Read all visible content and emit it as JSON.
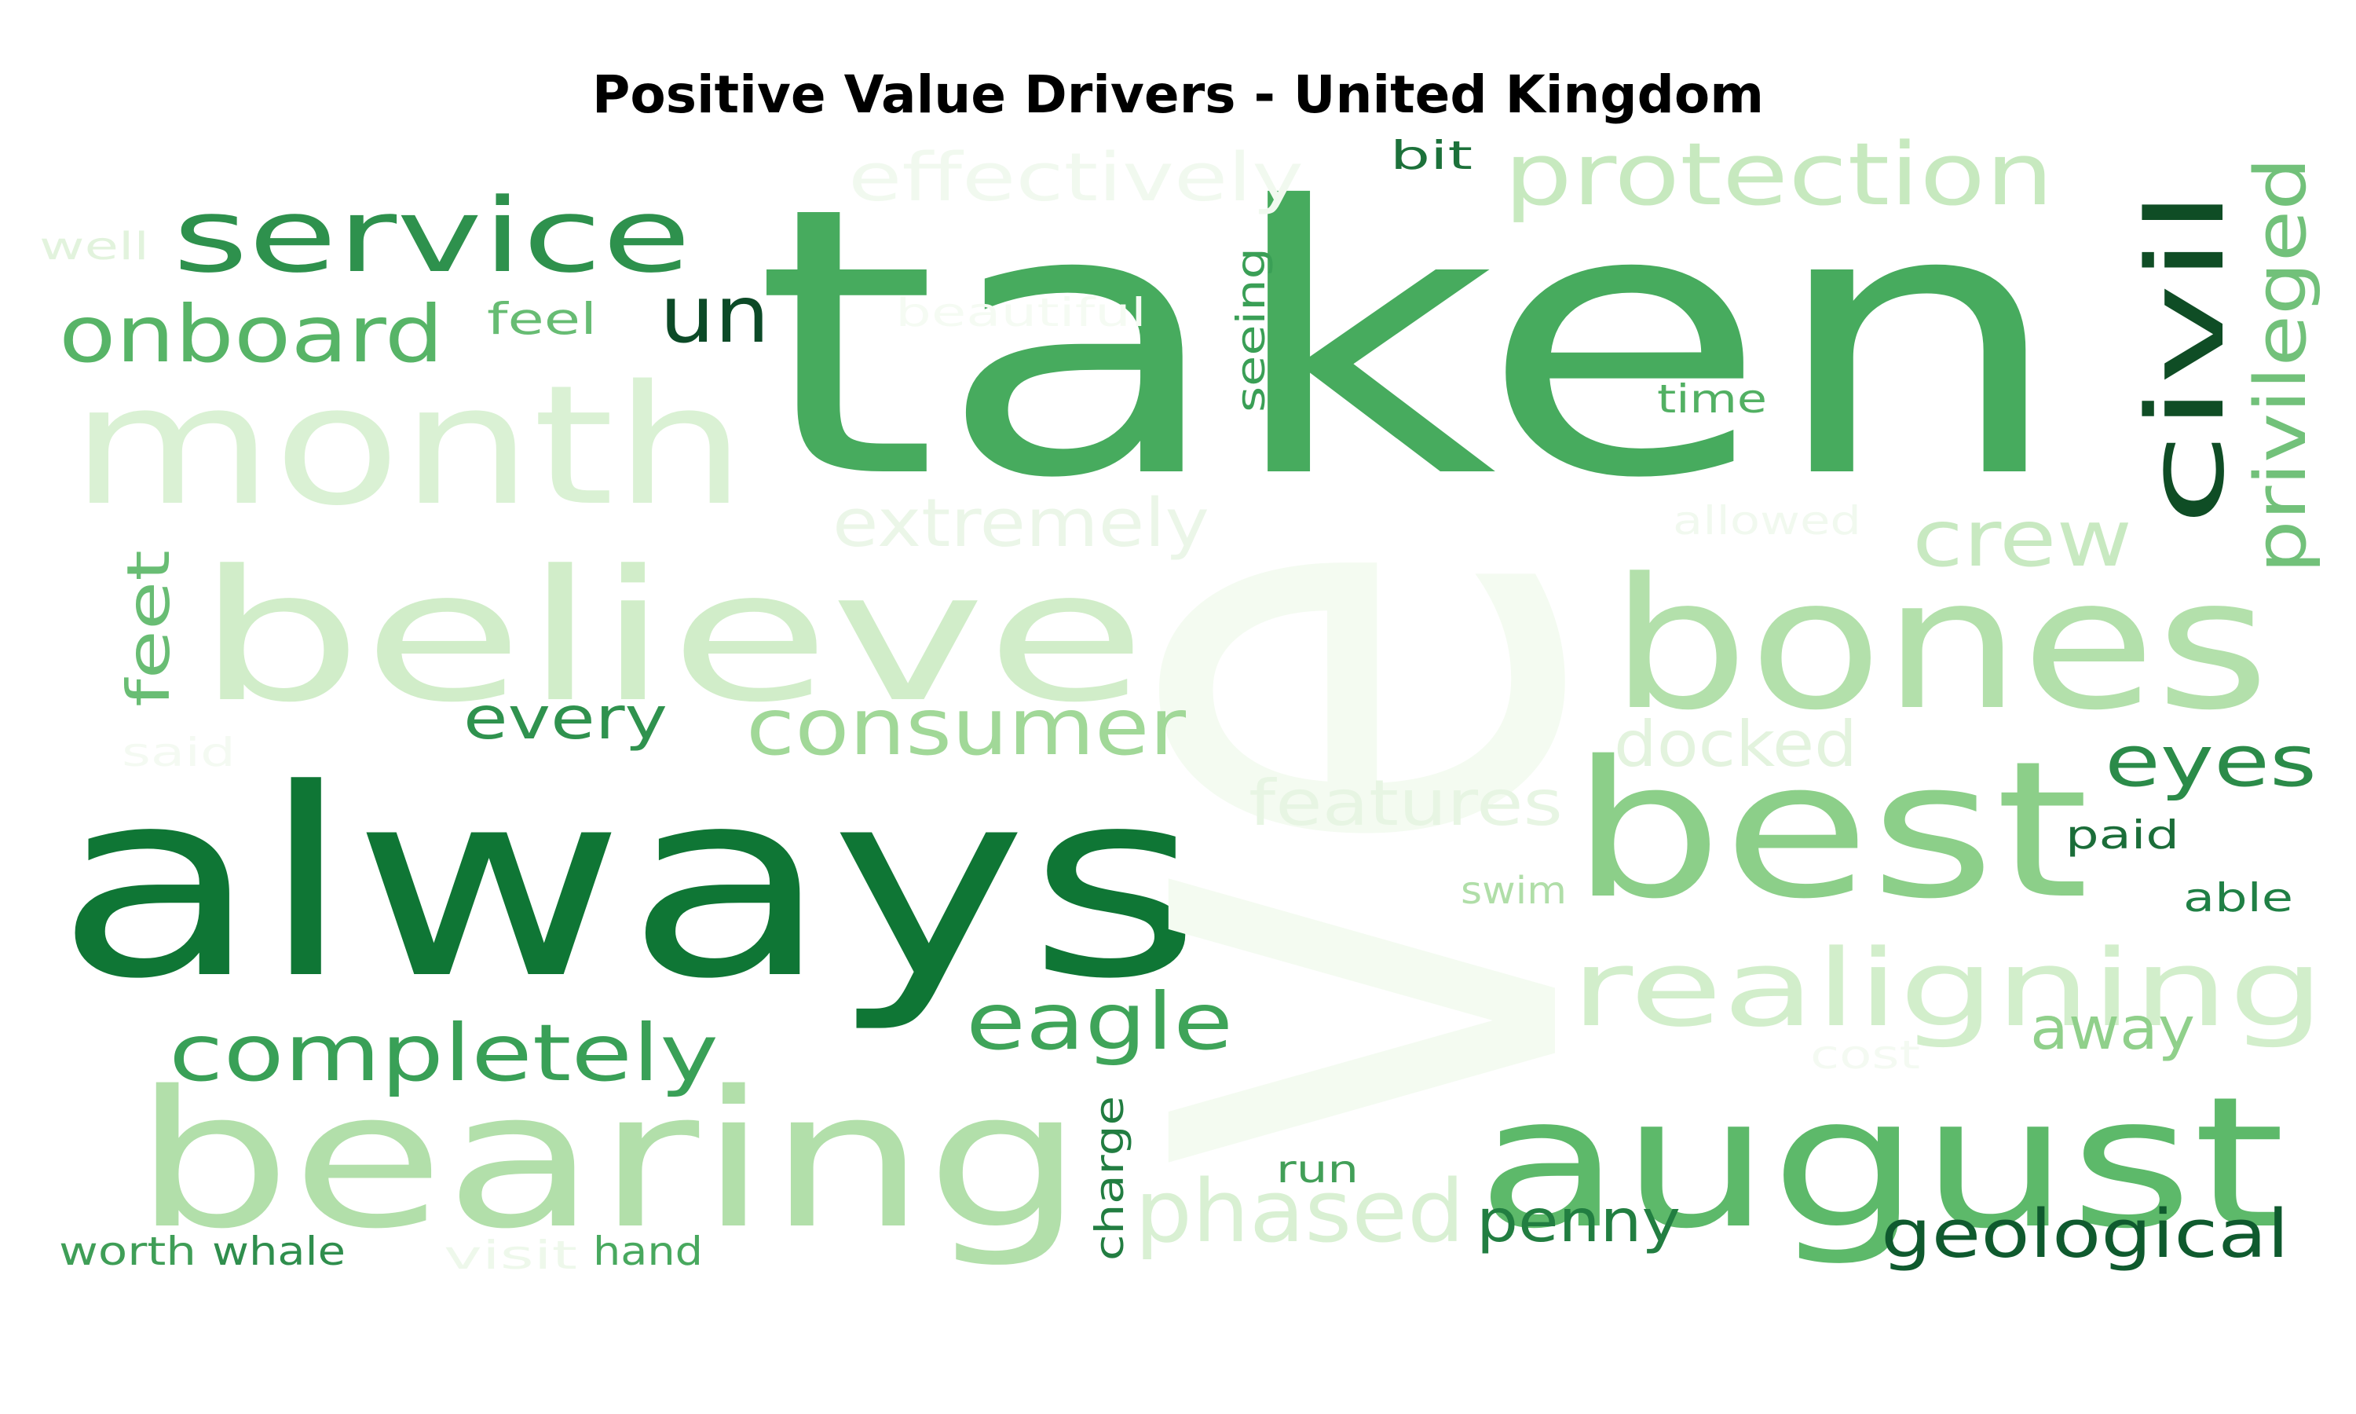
{
  "chart_data": {
    "type": "wordcloud",
    "title": "Positive Value Drivers - United Kingdom",
    "colormap": "Greens",
    "words": [
      {
        "text": "taken",
        "weight": 1.0,
        "color": "#47ab5e",
        "orient": "h"
      },
      {
        "text": "always",
        "weight": 0.93,
        "color": "#0f7635",
        "orient": "h"
      },
      {
        "text": "ve",
        "weight": 0.95,
        "color": "#f4fbf1",
        "orient": "v"
      },
      {
        "text": "bearing",
        "weight": 0.55,
        "color": "#b2dfaa",
        "orient": "h"
      },
      {
        "text": "believe",
        "weight": 0.55,
        "color": "#d1edc9",
        "orient": "h"
      },
      {
        "text": "month",
        "weight": 0.5,
        "color": "#daf1d4",
        "orient": "h"
      },
      {
        "text": "bones",
        "weight": 0.55,
        "color": "#b3e0ab",
        "orient": "h"
      },
      {
        "text": "best",
        "weight": 0.55,
        "color": "#8ccf89",
        "orient": "h"
      },
      {
        "text": "august",
        "weight": 0.55,
        "color": "#5db96a",
        "orient": "h"
      },
      {
        "text": "realigning",
        "weight": 0.32,
        "color": "#d2eecb",
        "orient": "h"
      },
      {
        "text": "service",
        "weight": 0.26,
        "color": "#2e914d",
        "orient": "h"
      },
      {
        "text": "protection",
        "weight": 0.24,
        "color": "#c7e9bf",
        "orient": "h"
      },
      {
        "text": "civil",
        "weight": 0.26,
        "color": "#0f4d25",
        "orient": "v"
      },
      {
        "text": "completely",
        "weight": 0.21,
        "color": "#39a057",
        "orient": "h"
      },
      {
        "text": "onboard",
        "weight": 0.2,
        "color": "#57b467",
        "orient": "h"
      },
      {
        "text": "consumer",
        "weight": 0.2,
        "color": "#a1d898",
        "orient": "h"
      },
      {
        "text": "eagle",
        "weight": 0.2,
        "color": "#3fa459",
        "orient": "h"
      },
      {
        "text": "crew",
        "weight": 0.2,
        "color": "#c8e9c1",
        "orient": "h"
      },
      {
        "text": "phased",
        "weight": 0.2,
        "color": "#d9f0d3",
        "orient": "h"
      },
      {
        "text": "privileged",
        "weight": 0.17,
        "color": "#72c17a",
        "orient": "v"
      },
      {
        "text": "eyes",
        "weight": 0.17,
        "color": "#2b8b49",
        "orient": "h"
      },
      {
        "text": "un",
        "weight": 0.17,
        "color": "#0c4a27",
        "orient": "h"
      },
      {
        "text": "effectively",
        "weight": 0.17,
        "color": "#f1f9ef",
        "orient": "h"
      },
      {
        "text": "extremely",
        "weight": 0.17,
        "color": "#ebf6e8",
        "orient": "h"
      },
      {
        "text": "features",
        "weight": 0.16,
        "color": "#e7f5e3",
        "orient": "h"
      },
      {
        "text": "docked",
        "weight": 0.16,
        "color": "#e3f3de",
        "orient": "h"
      },
      {
        "text": "every",
        "weight": 0.14,
        "color": "#2f924e",
        "orient": "h"
      },
      {
        "text": "feet",
        "weight": 0.14,
        "color": "#69bd74",
        "orient": "v"
      },
      {
        "text": "geological",
        "weight": 0.16,
        "color": "#0f5a2e",
        "orient": "h"
      },
      {
        "text": "penny",
        "weight": 0.14,
        "color": "#227e41",
        "orient": "h"
      },
      {
        "text": "away",
        "weight": 0.14,
        "color": "#90d08b",
        "orient": "h"
      },
      {
        "text": "seeing",
        "weight": 0.1,
        "color": "#3a9f56",
        "orient": "v"
      },
      {
        "text": "charge",
        "weight": 0.1,
        "color": "#227d41",
        "orient": "v"
      },
      {
        "text": "feel",
        "weight": 0.1,
        "color": "#67bc73",
        "orient": "h"
      },
      {
        "text": "time",
        "weight": 0.1,
        "color": "#52b063",
        "orient": "h"
      },
      {
        "text": "paid",
        "weight": 0.1,
        "color": "#1b6d39",
        "orient": "h"
      },
      {
        "text": "able",
        "weight": 0.1,
        "color": "#208045",
        "orient": "h"
      },
      {
        "text": "bit",
        "weight": 0.09,
        "color": "#1c713a",
        "orient": "h"
      },
      {
        "text": "run",
        "weight": 0.09,
        "color": "#429f58",
        "orient": "h"
      },
      {
        "text": "swim",
        "weight": 0.09,
        "color": "#b0dea8",
        "orient": "h"
      },
      {
        "text": "well",
        "weight": 0.09,
        "color": "#e2f3dd",
        "orient": "h"
      },
      {
        "text": "beautiful",
        "weight": 0.09,
        "color": "#f5fbf3",
        "orient": "h"
      },
      {
        "text": "allowed",
        "weight": 0.09,
        "color": "#f1f9ef",
        "orient": "h"
      },
      {
        "text": "said",
        "weight": 0.09,
        "color": "#f4faf2",
        "orient": "h"
      },
      {
        "text": "cost",
        "weight": 0.09,
        "color": "#f4faf2",
        "orient": "h"
      },
      {
        "text": "worth",
        "weight": 0.09,
        "color": "#3f9e57",
        "orient": "h"
      },
      {
        "text": "whale",
        "weight": 0.09,
        "color": "#2f8e4d",
        "orient": "h"
      },
      {
        "text": "visit",
        "weight": 0.09,
        "color": "#eef8eb",
        "orient": "h"
      },
      {
        "text": "hand",
        "weight": 0.09,
        "color": "#48a85e",
        "orient": "h"
      }
    ]
  }
}
